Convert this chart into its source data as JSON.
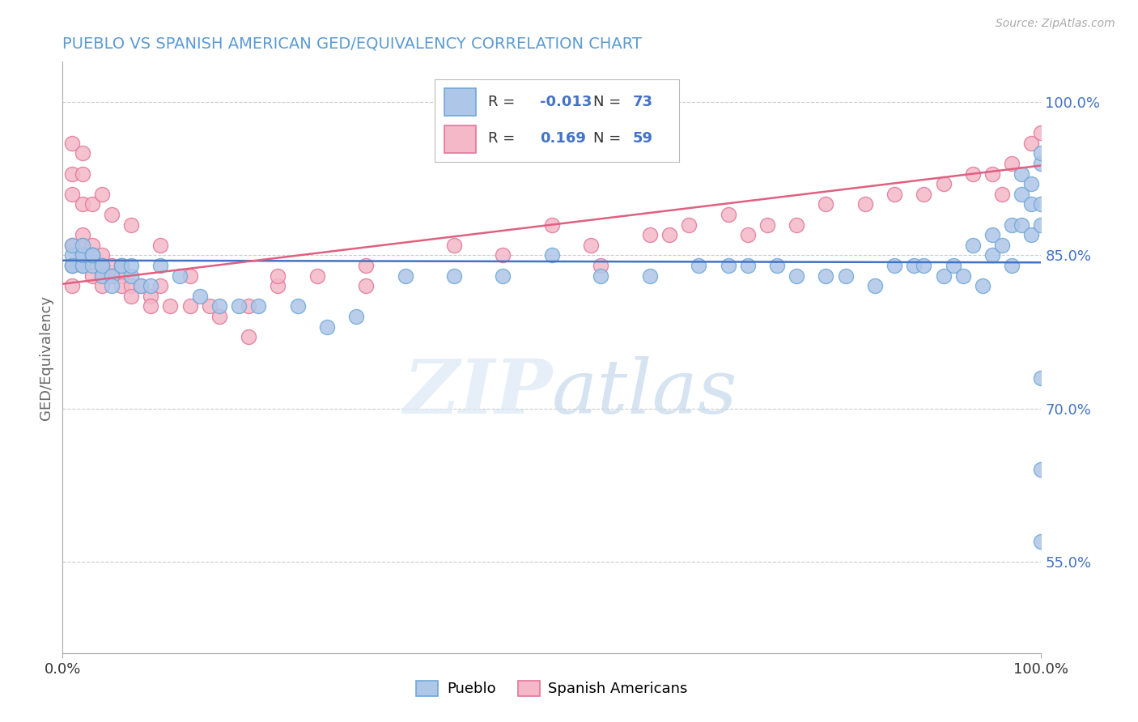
{
  "title": "PUEBLO VS SPANISH AMERICAN GED/EQUIVALENCY CORRELATION CHART",
  "source": "Source: ZipAtlas.com",
  "ylabel": "GED/Equivalency",
  "xlim": [
    0.0,
    1.0
  ],
  "ylim": [
    0.46,
    1.04
  ],
  "x_tick_labels": [
    "0.0%",
    "100.0%"
  ],
  "y_tick_labels": [
    "55.0%",
    "70.0%",
    "85.0%",
    "100.0%"
  ],
  "y_tick_values": [
    0.55,
    0.7,
    0.85,
    1.0
  ],
  "legend_labels": [
    "Pueblo",
    "Spanish Americans"
  ],
  "pueblo_color": "#aec6e8",
  "pueblo_edge": "#6fa8d6",
  "spanish_color": "#f4b8c8",
  "spanish_edge": "#e07898",
  "trendline_pueblo_color": "#4472c4",
  "trendline_spanish_color": "#e06080",
  "R_pueblo": -0.013,
  "N_pueblo": 73,
  "R_spanish": 0.169,
  "N_spanish": 59,
  "watermark_zip": "ZIP",
  "watermark_atlas": "atlas",
  "background_color": "#ffffff",
  "grid_color": "#cccccc",
  "title_color": "#5b9bd5",
  "axis_label_color": "#666666",
  "pueblo_trendline_y0": 0.845,
  "pueblo_trendline_y1": 0.843,
  "spanish_trendline_y0": 0.822,
  "spanish_trendline_y1": 0.938,
  "pueblo_x": [
    0.01,
    0.01,
    0.01,
    0.01,
    0.02,
    0.02,
    0.02,
    0.02,
    0.02,
    0.03,
    0.03,
    0.03,
    0.03,
    0.04,
    0.04,
    0.04,
    0.05,
    0.05,
    0.06,
    0.06,
    0.07,
    0.07,
    0.08,
    0.09,
    0.1,
    0.12,
    0.14,
    0.16,
    0.18,
    0.2,
    0.24,
    0.27,
    0.3,
    0.35,
    0.4,
    0.45,
    0.5,
    0.55,
    0.6,
    0.65,
    0.68,
    0.7,
    0.73,
    0.75,
    0.78,
    0.8,
    0.83,
    0.85,
    0.87,
    0.88,
    0.9,
    0.91,
    0.92,
    0.93,
    0.94,
    0.95,
    0.95,
    0.96,
    0.97,
    0.97,
    0.98,
    0.98,
    0.98,
    0.99,
    0.99,
    0.99,
    1.0,
    1.0,
    1.0,
    1.0,
    1.0,
    1.0,
    1.0
  ],
  "pueblo_y": [
    0.84,
    0.85,
    0.84,
    0.86,
    0.84,
    0.85,
    0.84,
    0.85,
    0.86,
    0.85,
    0.84,
    0.85,
    0.85,
    0.84,
    0.83,
    0.84,
    0.83,
    0.82,
    0.84,
    0.84,
    0.83,
    0.84,
    0.82,
    0.82,
    0.84,
    0.83,
    0.81,
    0.8,
    0.8,
    0.8,
    0.8,
    0.78,
    0.79,
    0.83,
    0.83,
    0.83,
    0.85,
    0.83,
    0.83,
    0.84,
    0.84,
    0.84,
    0.84,
    0.83,
    0.83,
    0.83,
    0.82,
    0.84,
    0.84,
    0.84,
    0.83,
    0.84,
    0.83,
    0.86,
    0.82,
    0.87,
    0.85,
    0.86,
    0.88,
    0.84,
    0.91,
    0.93,
    0.88,
    0.92,
    0.87,
    0.9,
    0.9,
    0.94,
    0.95,
    0.88,
    0.73,
    0.64,
    0.57
  ],
  "spanish_x": [
    0.01,
    0.01,
    0.01,
    0.02,
    0.02,
    0.02,
    0.02,
    0.03,
    0.03,
    0.03,
    0.03,
    0.03,
    0.04,
    0.04,
    0.04,
    0.04,
    0.05,
    0.05,
    0.05,
    0.06,
    0.06,
    0.06,
    0.07,
    0.07,
    0.08,
    0.09,
    0.09,
    0.1,
    0.11,
    0.13,
    0.16,
    0.19,
    0.22,
    0.26,
    0.31,
    0.31,
    0.4,
    0.45,
    0.5,
    0.54,
    0.55,
    0.6,
    0.62,
    0.64,
    0.68,
    0.7,
    0.72,
    0.75,
    0.78,
    0.82,
    0.85,
    0.88,
    0.9,
    0.93,
    0.95,
    0.96,
    0.97,
    0.99,
    1.0
  ],
  "spanish_y": [
    0.86,
    0.84,
    0.82,
    0.9,
    0.87,
    0.84,
    0.86,
    0.86,
    0.85,
    0.84,
    0.83,
    0.85,
    0.85,
    0.84,
    0.83,
    0.82,
    0.84,
    0.83,
    0.83,
    0.84,
    0.83,
    0.82,
    0.82,
    0.81,
    0.82,
    0.81,
    0.8,
    0.82,
    0.8,
    0.8,
    0.79,
    0.8,
    0.82,
    0.83,
    0.84,
    0.82,
    0.86,
    0.85,
    0.88,
    0.86,
    0.84,
    0.87,
    0.87,
    0.88,
    0.89,
    0.87,
    0.88,
    0.88,
    0.9,
    0.9,
    0.91,
    0.91,
    0.92,
    0.93,
    0.93,
    0.91,
    0.94,
    0.96,
    0.97
  ],
  "spanish_outlier_x": [
    0.01,
    0.01,
    0.01,
    0.02,
    0.02,
    0.03,
    0.04,
    0.05,
    0.07,
    0.1,
    0.13,
    0.15,
    0.19,
    0.22
  ],
  "spanish_outlier_y": [
    0.96,
    0.93,
    0.91,
    0.95,
    0.93,
    0.9,
    0.91,
    0.89,
    0.88,
    0.86,
    0.83,
    0.8,
    0.77,
    0.83
  ]
}
